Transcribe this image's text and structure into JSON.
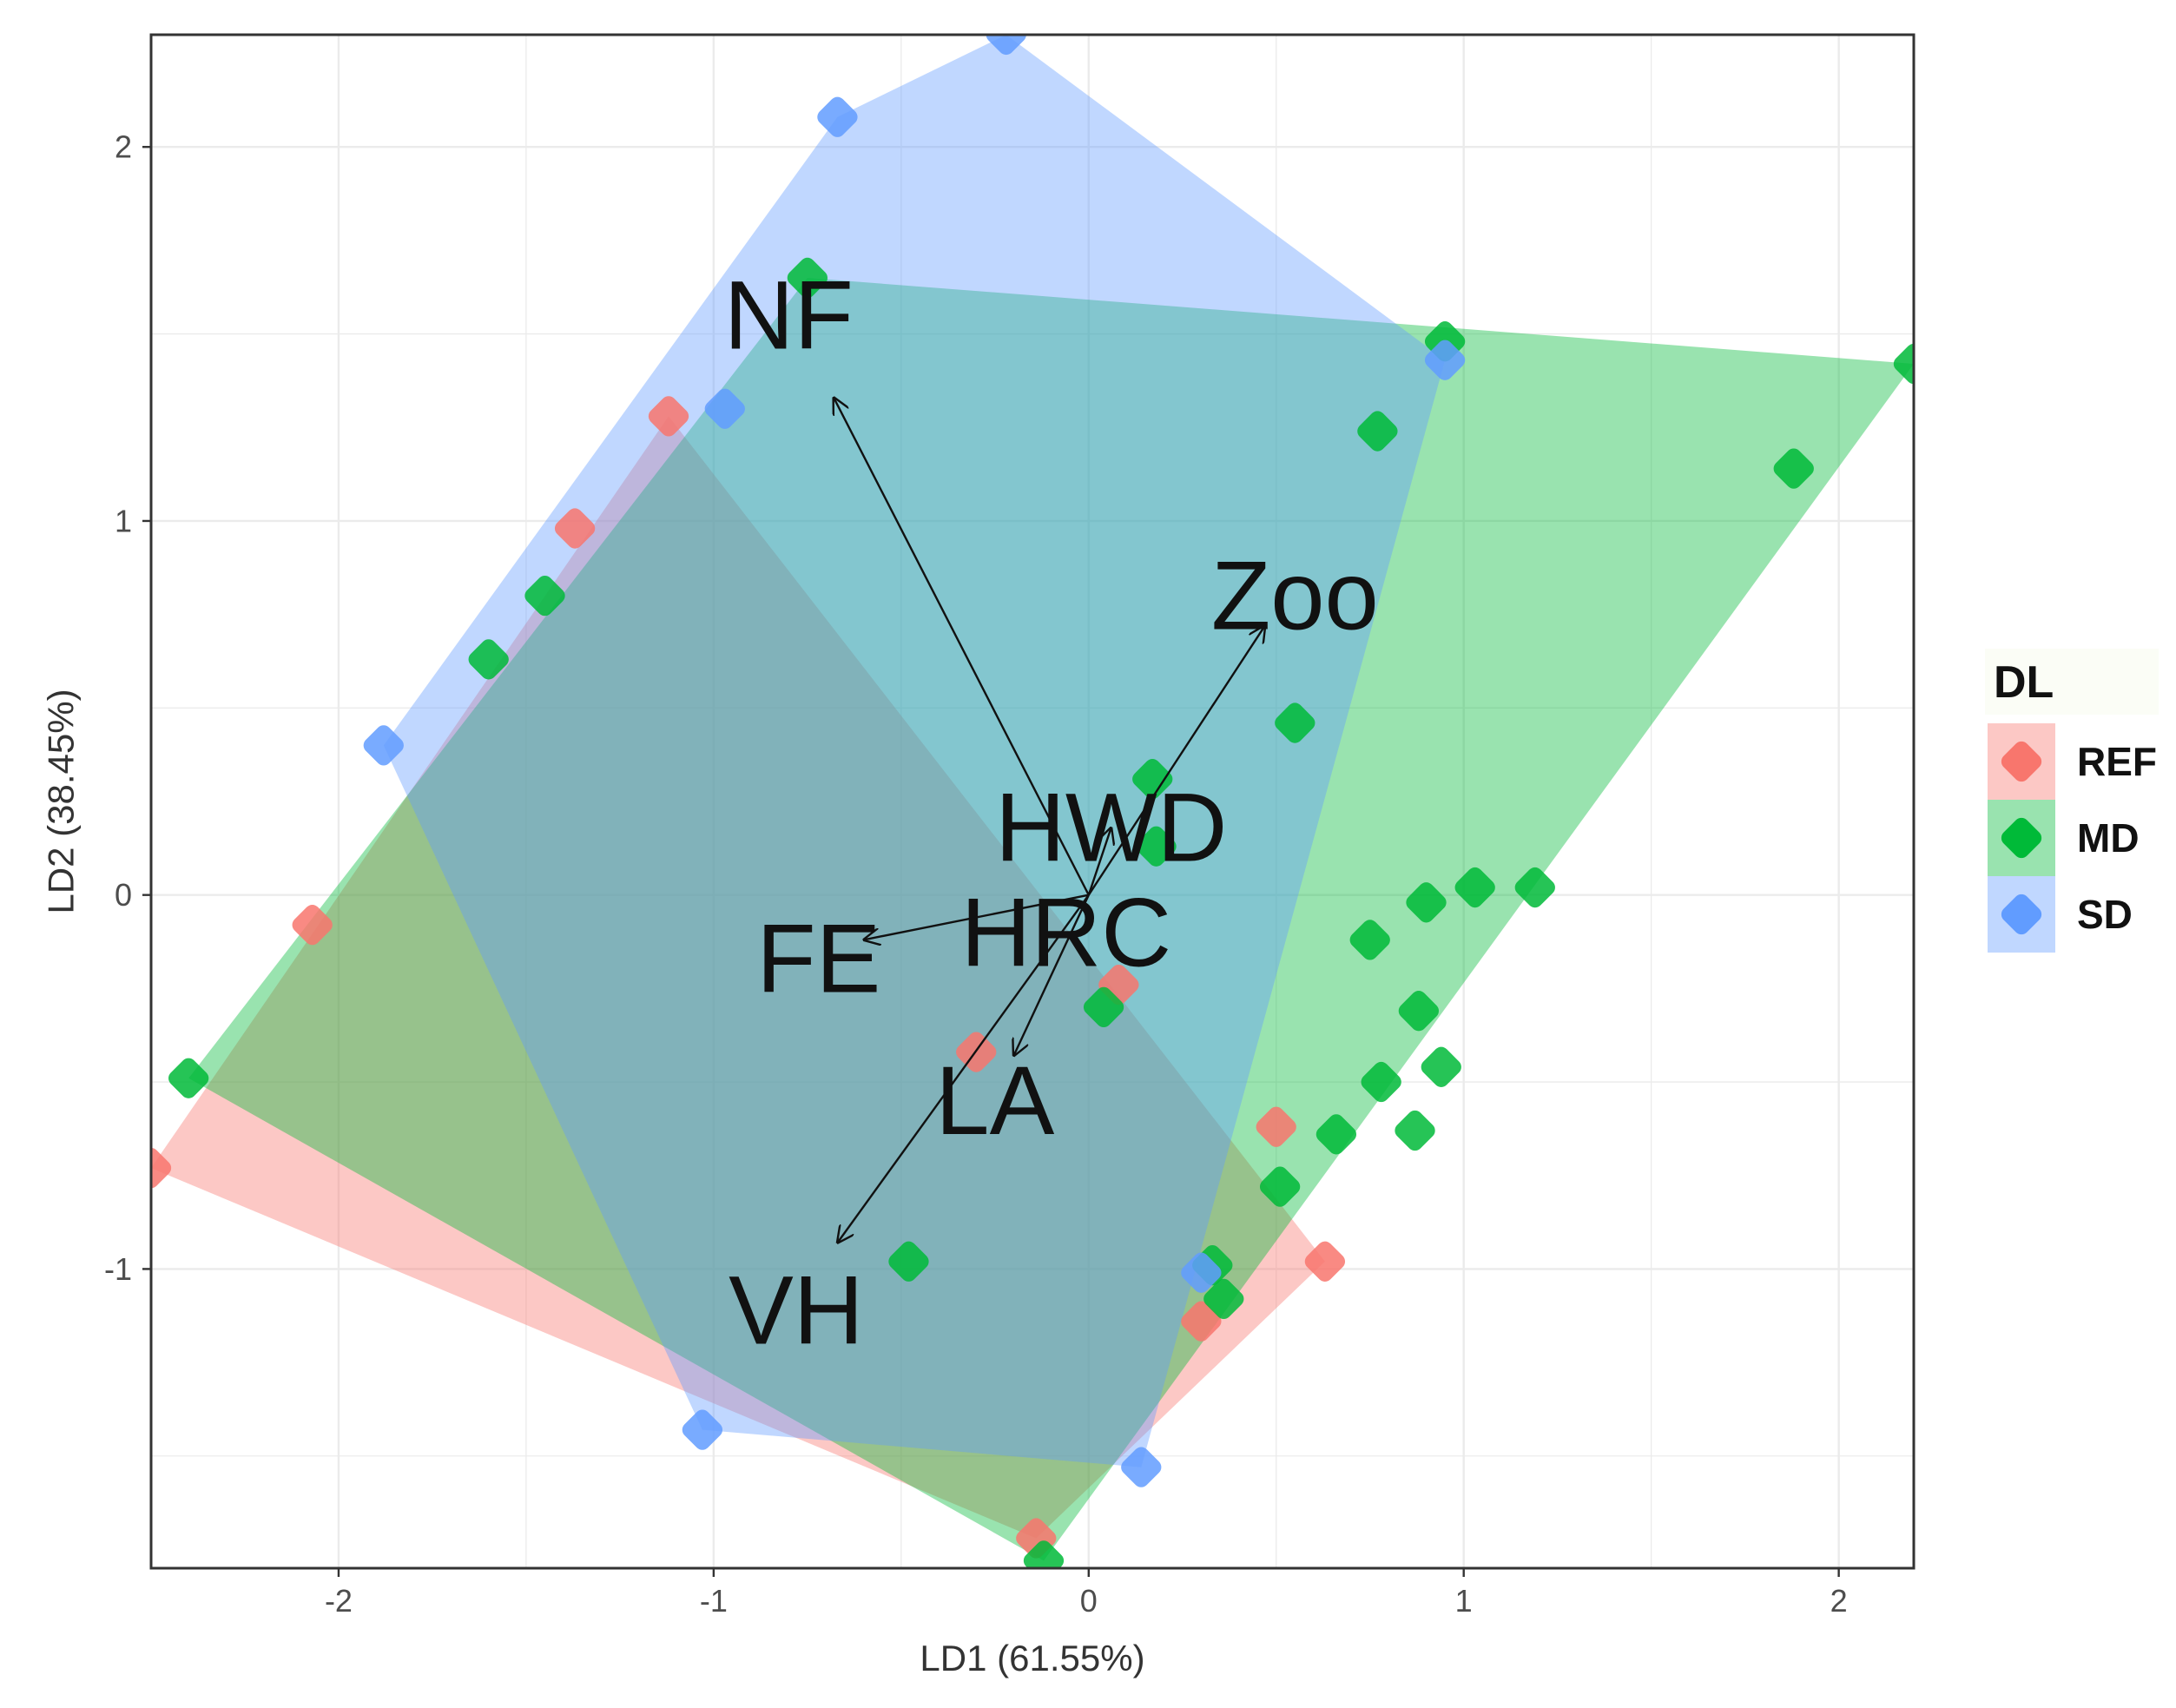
{
  "chart_data": {
    "type": "scatter",
    "subtype": "LDA biplot with group convex hulls and loading vectors",
    "xlabel": "LD1 (61.55%)",
    "ylabel": "LD2 (38.45%)",
    "xlim": [
      -2.5,
      2.2
    ],
    "ylim": [
      -1.8,
      2.3
    ],
    "xticks": [
      -2,
      -1,
      0,
      1,
      2
    ],
    "yticks": [
      -1,
      0,
      1,
      2
    ],
    "xtick_labels": [
      "-2",
      "-1",
      "0",
      "1",
      "2"
    ],
    "ytick_labels": [
      "-1",
      "0",
      "1",
      "2"
    ],
    "grid": true,
    "legend": {
      "title": "DL",
      "position": "right",
      "entries": [
        {
          "name": "REF",
          "color": "#F8766D"
        },
        {
          "name": "MD",
          "color": "#00BA38"
        },
        {
          "name": "SD",
          "color": "#619CFF"
        }
      ]
    },
    "series": [
      {
        "name": "REF",
        "color": "#F8766D",
        "hull": [
          [
            -2.5,
            -0.73
          ],
          [
            -1.12,
            1.28
          ],
          [
            0.63,
            -0.98
          ],
          [
            -0.14,
            -1.72
          ]
        ],
        "points": [
          [
            -2.5,
            -0.73
          ],
          [
            -2.07,
            -0.08
          ],
          [
            -1.37,
            0.98
          ],
          [
            -1.12,
            1.28
          ],
          [
            -0.3,
            -0.42
          ],
          [
            0.08,
            -0.24
          ],
          [
            0.5,
            -0.62
          ],
          [
            0.63,
            -0.98
          ],
          [
            0.3,
            -1.14
          ],
          [
            -0.14,
            -1.72
          ]
        ]
      },
      {
        "name": "MD",
        "color": "#00BA38",
        "hull": [
          [
            -2.4,
            -0.49
          ],
          [
            -0.75,
            1.65
          ],
          [
            2.2,
            1.42
          ],
          [
            -0.12,
            -1.78
          ]
        ],
        "points": [
          [
            -2.4,
            -0.49
          ],
          [
            -1.45,
            0.8
          ],
          [
            -1.6,
            0.63
          ],
          [
            -0.75,
            1.65
          ],
          [
            0.95,
            1.48
          ],
          [
            0.77,
            1.24
          ],
          [
            2.2,
            1.42
          ],
          [
            1.88,
            1.14
          ],
          [
            0.55,
            0.46
          ],
          [
            0.17,
            0.31
          ],
          [
            0.18,
            0.13
          ],
          [
            0.75,
            -0.12
          ],
          [
            0.9,
            -0.02
          ],
          [
            1.03,
            0.02
          ],
          [
            1.19,
            0.02
          ],
          [
            0.88,
            -0.31
          ],
          [
            0.94,
            -0.46
          ],
          [
            0.78,
            -0.5
          ],
          [
            0.66,
            -0.64
          ],
          [
            0.87,
            -0.63
          ],
          [
            0.51,
            -0.78
          ],
          [
            0.33,
            -0.99
          ],
          [
            0.36,
            -1.08
          ],
          [
            0.04,
            -0.3
          ],
          [
            -0.48,
            -0.98
          ],
          [
            -0.12,
            -1.78
          ]
        ]
      },
      {
        "name": "SD",
        "color": "#619CFF",
        "hull": [
          [
            -1.88,
            0.4
          ],
          [
            -0.67,
            2.08
          ],
          [
            -0.22,
            2.3
          ],
          [
            0.95,
            1.43
          ],
          [
            0.14,
            -1.53
          ],
          [
            -1.03,
            -1.43
          ]
        ],
        "points": [
          [
            -1.88,
            0.4
          ],
          [
            -0.67,
            2.08
          ],
          [
            -0.22,
            2.3
          ],
          [
            -0.97,
            1.3
          ],
          [
            0.95,
            1.43
          ],
          [
            0.14,
            -1.53
          ],
          [
            -1.03,
            -1.43
          ],
          [
            0.3,
            -1.01
          ]
        ]
      }
    ],
    "loading_vectors": [
      {
        "name": "NF",
        "x": -0.68,
        "y": 1.33
      },
      {
        "name": "Zoo",
        "x": 0.47,
        "y": 0.72
      },
      {
        "name": "HWD",
        "x": 0.06,
        "y": 0.18
      },
      {
        "name": "HRC",
        "x": 0.0,
        "y": 0.0
      },
      {
        "name": "FE",
        "x": -0.6,
        "y": -0.12
      },
      {
        "name": "LA",
        "x": -0.2,
        "y": -0.43
      },
      {
        "name": "VH",
        "x": -0.67,
        "y": -0.93
      }
    ],
    "vector_labels": [
      {
        "name": "NF",
        "x": -0.8,
        "y": 1.55
      },
      {
        "name": "Zoo",
        "x": 0.55,
        "y": 0.8
      },
      {
        "name": "HWD",
        "x": 0.06,
        "y": 0.18
      },
      {
        "name": "HRC",
        "x": -0.06,
        "y": -0.1
      },
      {
        "name": "FE",
        "x": -0.72,
        "y": -0.17
      },
      {
        "name": "LA",
        "x": -0.25,
        "y": -0.55
      },
      {
        "name": "VH",
        "x": -0.78,
        "y": -1.11
      }
    ]
  }
}
